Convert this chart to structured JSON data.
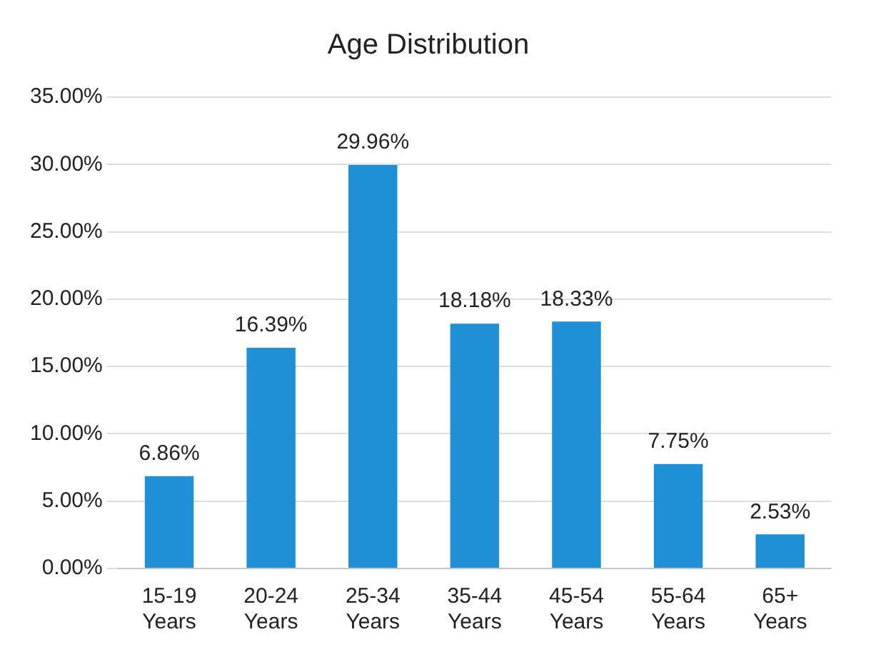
{
  "chart_data": {
    "type": "bar",
    "title": "Age Distribution",
    "categories": [
      "15-19 Years",
      "20-24 Years",
      "25-34 Years",
      "35-44 Years",
      "45-54 Years",
      "55-64 Years",
      "65+ Years"
    ],
    "values": [
      6.86,
      16.39,
      29.96,
      18.18,
      18.33,
      7.75,
      2.53
    ],
    "value_labels": [
      "6.86%",
      "16.39%",
      "29.96%",
      "18.18%",
      "18.33%",
      "7.75%",
      "2.53%"
    ],
    "color": "#1f8fd6",
    "ylim": [
      0,
      35
    ],
    "yticks": [
      {
        "value": 0,
        "label": "0.00%"
      },
      {
        "value": 5,
        "label": "5.00%"
      },
      {
        "value": 10,
        "label": "10.00%"
      },
      {
        "value": 15,
        "label": "15.00%"
      },
      {
        "value": 20,
        "label": "20.00%"
      },
      {
        "value": 25,
        "label": "25.00%"
      },
      {
        "value": 30,
        "label": "30.00%"
      },
      {
        "value": 35,
        "label": "35.00%"
      }
    ],
    "grid": "y"
  }
}
